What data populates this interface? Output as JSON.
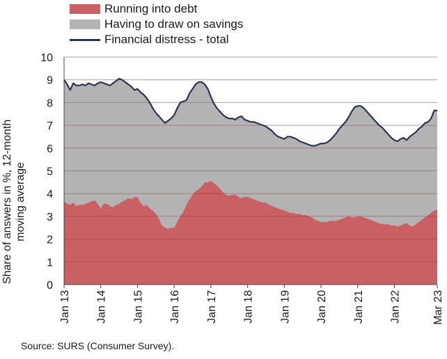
{
  "chart_data": {
    "type": "area",
    "title": "",
    "xlabel": "",
    "ylabel": "Share of answers in %, 12-month moving average",
    "ylim": [
      0,
      10
    ],
    "yticks": [
      "0",
      "1",
      "2",
      "3",
      "4",
      "5",
      "6",
      "7",
      "8",
      "9",
      "10"
    ],
    "grid": true,
    "legend_position": "top",
    "xticks": [
      "Jan 13",
      "Jan 14",
      "Jan 15",
      "Jan 16",
      "Jan 17",
      "Jan 18",
      "Jan 19",
      "Jan 20",
      "Jan 21",
      "Jan 22",
      "Mar 23"
    ],
    "xtick_months": [
      0,
      12,
      24,
      36,
      48,
      60,
      72,
      84,
      96,
      108,
      122
    ],
    "x_start": "Jan 2013",
    "x_end": "Mar 2023",
    "series": [
      {
        "name": "Running into debt",
        "style": "area",
        "color": "#c96164",
        "values": [
          3.65,
          3.55,
          3.5,
          3.6,
          3.45,
          3.5,
          3.5,
          3.55,
          3.6,
          3.65,
          3.7,
          3.55,
          3.35,
          3.55,
          3.55,
          3.45,
          3.4,
          3.5,
          3.55,
          3.65,
          3.7,
          3.8,
          3.75,
          3.85,
          3.85,
          3.6,
          3.45,
          3.5,
          3.35,
          3.25,
          3.1,
          2.9,
          2.6,
          2.5,
          2.45,
          2.5,
          2.5,
          2.75,
          3.0,
          3.2,
          3.5,
          3.75,
          3.95,
          4.1,
          4.2,
          4.3,
          4.5,
          4.5,
          4.55,
          4.45,
          4.35,
          4.2,
          4.05,
          3.95,
          3.9,
          3.95,
          3.95,
          3.85,
          3.8,
          3.85,
          3.85,
          3.8,
          3.75,
          3.7,
          3.65,
          3.6,
          3.6,
          3.5,
          3.45,
          3.4,
          3.35,
          3.3,
          3.25,
          3.2,
          3.15,
          3.15,
          3.1,
          3.1,
          3.05,
          3.05,
          3.0,
          2.95,
          2.85,
          2.8,
          2.75,
          2.75,
          2.75,
          2.8,
          2.8,
          2.8,
          2.85,
          2.9,
          2.95,
          3.0,
          2.95,
          2.95,
          3.0,
          3.0,
          2.95,
          2.9,
          2.85,
          2.8,
          2.75,
          2.7,
          2.65,
          2.65,
          2.65,
          2.6,
          2.6,
          2.55,
          2.6,
          2.65,
          2.7,
          2.6,
          2.55,
          2.65,
          2.75,
          2.85,
          2.95,
          3.05,
          3.15,
          3.25,
          3.3
        ]
      },
      {
        "name": "Having to draw on savings",
        "style": "area",
        "color": "#b3b3b3",
        "values": []
      },
      {
        "name": "Financial distress - total",
        "style": "line",
        "color": "#2b3450",
        "values": [
          9.0,
          8.8,
          8.55,
          8.85,
          8.75,
          8.75,
          8.8,
          8.75,
          8.85,
          8.8,
          8.75,
          8.85,
          8.9,
          8.85,
          8.8,
          8.75,
          8.85,
          8.95,
          9.05,
          9.0,
          8.9,
          8.8,
          8.7,
          8.55,
          8.6,
          8.45,
          8.35,
          8.2,
          8.0,
          7.75,
          7.55,
          7.4,
          7.25,
          7.1,
          7.2,
          7.3,
          7.45,
          7.75,
          8.0,
          8.05,
          8.1,
          8.4,
          8.6,
          8.8,
          8.9,
          8.9,
          8.8,
          8.6,
          8.25,
          7.95,
          7.75,
          7.6,
          7.45,
          7.35,
          7.3,
          7.3,
          7.25,
          7.35,
          7.4,
          7.25,
          7.2,
          7.15,
          7.15,
          7.1,
          7.05,
          7.0,
          6.95,
          6.85,
          6.75,
          6.6,
          6.5,
          6.45,
          6.4,
          6.5,
          6.5,
          6.45,
          6.4,
          6.3,
          6.25,
          6.2,
          6.15,
          6.1,
          6.1,
          6.15,
          6.2,
          6.2,
          6.25,
          6.35,
          6.5,
          6.65,
          6.85,
          7.0,
          7.15,
          7.35,
          7.6,
          7.8,
          7.85,
          7.85,
          7.75,
          7.6,
          7.45,
          7.3,
          7.15,
          7.0,
          6.9,
          6.75,
          6.6,
          6.45,
          6.35,
          6.3,
          6.4,
          6.45,
          6.35,
          6.5,
          6.6,
          6.7,
          6.85,
          6.95,
          7.1,
          7.15,
          7.3,
          7.65,
          7.65
        ]
      }
    ]
  },
  "source": "Source: SURS (Consumer Survey)."
}
